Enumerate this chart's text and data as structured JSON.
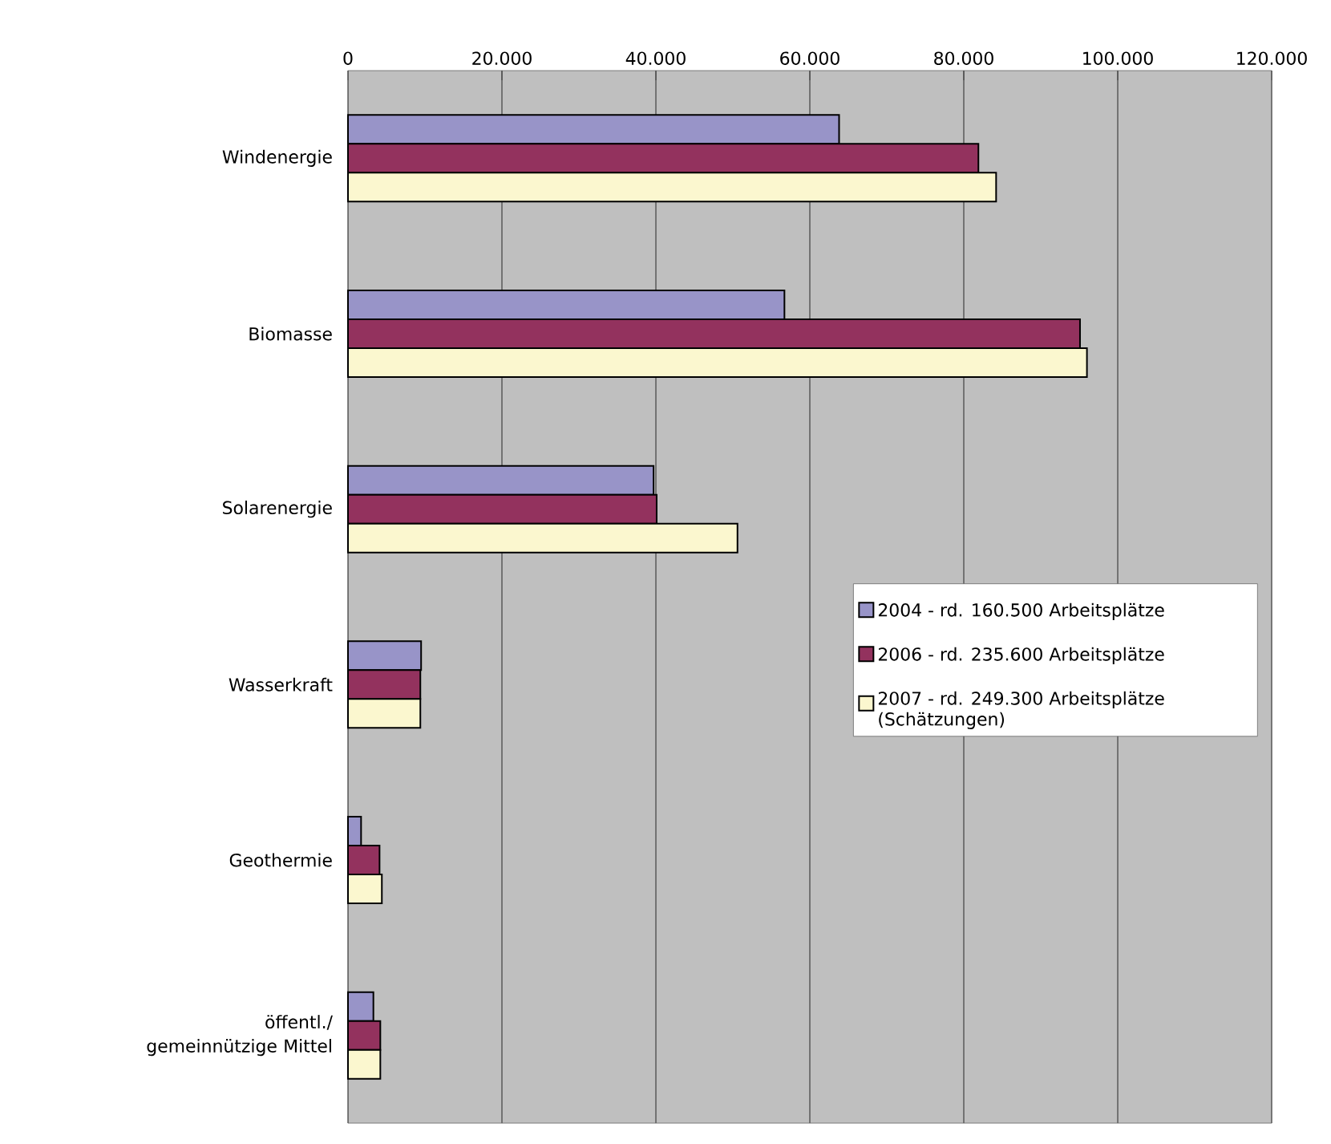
{
  "chart_data": {
    "type": "bar",
    "orientation": "horizontal",
    "categories": [
      "Windenergie",
      "Biomasse",
      "Solarenergie",
      "Wasserkraft",
      "Geothermie",
      "öffentl./ gemeinnützige Mittel"
    ],
    "series": [
      {
        "name": "2004 - rd. 160.500 Arbeitsplätze",
        "color": "#9894c8",
        "values": [
          63800,
          56700,
          39700,
          9500,
          1700,
          3300
        ]
      },
      {
        "name": "2006 - rd. 235.600 Arbeitsplätze",
        "color": "#93325e",
        "values": [
          81900,
          95100,
          40100,
          9400,
          4100,
          4200
        ]
      },
      {
        "name": "2007 - rd. 249.300 Arbeitsplätze (Schätzungen)",
        "color": "#fbf7cf",
        "values": [
          84200,
          96000,
          50600,
          9400,
          4400,
          4200
        ]
      }
    ],
    "xlim": [
      0,
      120000
    ],
    "xticks": [
      {
        "value": 0,
        "label": "0"
      },
      {
        "value": 20000,
        "label": "20.000"
      },
      {
        "value": 40000,
        "label": "40.000"
      },
      {
        "value": 60000,
        "label": "60.000"
      },
      {
        "value": 80000,
        "label": "80.000"
      },
      {
        "value": 100000,
        "label": "100.000"
      },
      {
        "value": 120000,
        "label": "120.000"
      }
    ],
    "grid": "x",
    "legend": "right"
  }
}
